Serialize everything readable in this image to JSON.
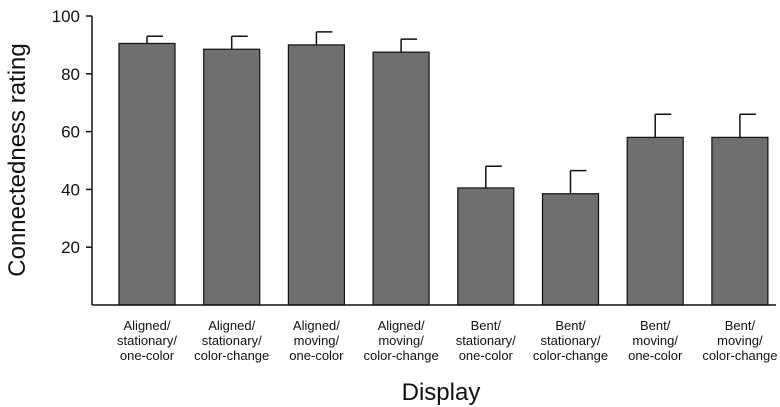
{
  "chart_data": {
    "type": "bar",
    "title": "",
    "xlabel": "Display",
    "ylabel": "Connectedness rating",
    "ylim": [
      0,
      100
    ],
    "yticks": [
      20,
      40,
      60,
      80,
      100
    ],
    "grid": false,
    "legend": "none",
    "categories": [
      [
        "Aligned/",
        "stationary/",
        "one-color"
      ],
      [
        "Aligned/",
        "stationary/",
        "color-change"
      ],
      [
        "Aligned/",
        "moving/",
        "one-color"
      ],
      [
        "Aligned/",
        "moving/",
        "color-change"
      ],
      [
        "Bent/",
        "stationary/",
        "one-color"
      ],
      [
        "Bent/",
        "stationary/",
        "color-change"
      ],
      [
        "Bent/",
        "moving/",
        "one-color"
      ],
      [
        "Bent/",
        "moving/",
        "color-change"
      ]
    ],
    "values": [
      90.5,
      88.5,
      90,
      87.5,
      40.5,
      38.5,
      58,
      58
    ],
    "error_upper": [
      2.5,
      4.5,
      4.5,
      4.5,
      7.5,
      8,
      8,
      8
    ],
    "colors": {
      "bar": "#6f6f6f",
      "bar_edge": "#111111",
      "axis": "#111111"
    }
  }
}
